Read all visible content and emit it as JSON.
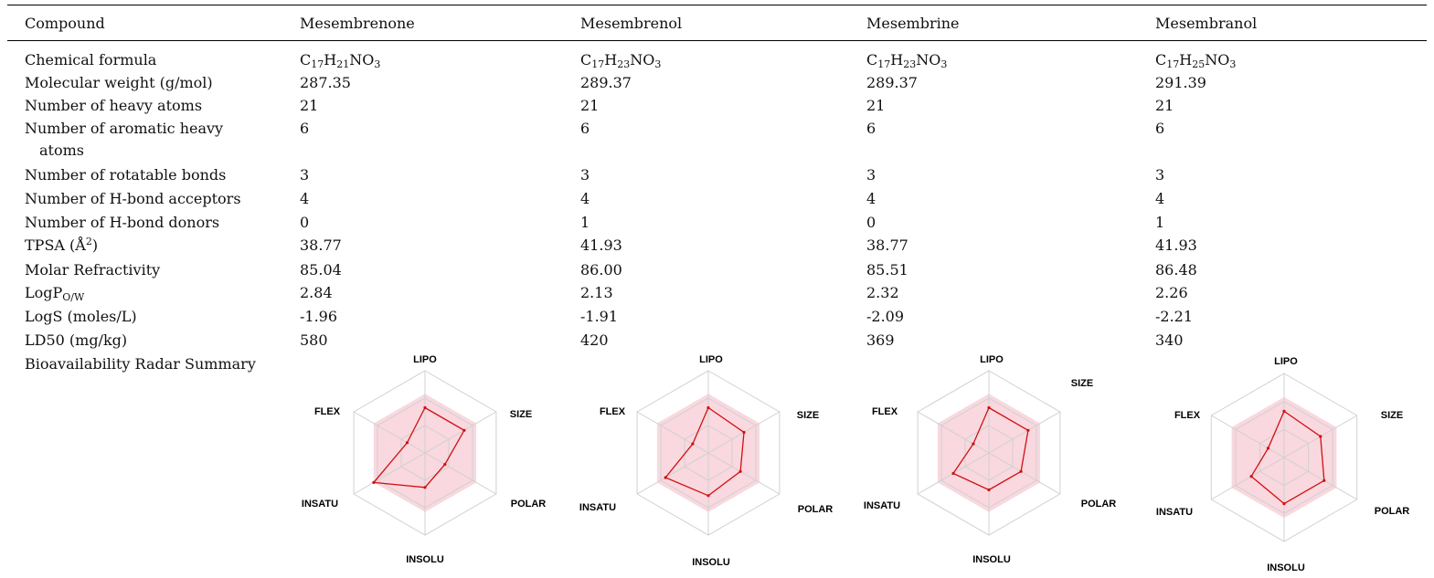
{
  "table": {
    "header": {
      "compound_label": "Compound",
      "compounds": [
        "Mesembrenone",
        "Mesembrenol",
        "Mesembrine",
        "Mesembranol"
      ]
    },
    "rows": [
      {
        "label": "Chemical formula"
      },
      {
        "label": "Molecular weight (g/mol)",
        "values": [
          "287.35",
          "289.37",
          "289.37",
          "291.39"
        ]
      },
      {
        "label": "Number of heavy atoms",
        "values": [
          "21",
          "21",
          "21",
          "21"
        ]
      },
      {
        "label": "Number of aromatic heavy atoms",
        "values": [
          "6",
          "6",
          "6",
          "6"
        ]
      },
      {
        "label": "Number of rotatable bonds",
        "values": [
          "3",
          "3",
          "3",
          "3"
        ]
      },
      {
        "label": "Number of H-bond acceptors",
        "values": [
          "4",
          "4",
          "4",
          "4"
        ]
      },
      {
        "label": "Number of H-bond donors",
        "values": [
          "0",
          "1",
          "0",
          "1"
        ]
      },
      {
        "label": "TPSA (Å",
        "label_sup": "2",
        "label_after": ")",
        "values": [
          "38.77",
          "41.93",
          "38.77",
          "41.93"
        ]
      },
      {
        "label": "Molar Refractivity",
        "values": [
          "85.04",
          "86.00",
          "85.51",
          "86.48"
        ]
      },
      {
        "label": "LogP",
        "label_sub": "O/W",
        "values": [
          "2.84",
          "2.13",
          "2.32",
          "2.26"
        ]
      },
      {
        "label": "LogS (moles/L)",
        "values": [
          "-1.96",
          "-1.91",
          "-2.09",
          "-2.21"
        ]
      },
      {
        "label": "LD50 (mg/kg)",
        "values": [
          "580",
          "420",
          "369",
          "340"
        ]
      },
      {
        "label": "Bioavailability Radar Summary"
      }
    ],
    "formulas": [
      {
        "c": "C",
        "c_n": "17",
        "h": "H",
        "h_n": "21",
        "rest": "NO",
        "o_n": "3"
      },
      {
        "c": "C",
        "c_n": "17",
        "h": "H",
        "h_n": "23",
        "rest": "NO",
        "o_n": "3"
      },
      {
        "c": "C",
        "c_n": "17",
        "h": "H",
        "h_n": "23",
        "rest": "NO",
        "o_n": "3"
      },
      {
        "c": "C",
        "c_n": "17",
        "h": "H",
        "h_n": "25",
        "rest": "NO",
        "o_n": "3"
      }
    ]
  },
  "radar": {
    "axes": [
      "LIPO",
      "SIZE",
      "POLAR",
      "INSOLU",
      "INSATU",
      "FLEX"
    ],
    "colors": {
      "zone": "#f9d8df",
      "line": "#d01010",
      "grid": "#d0d0d0"
    },
    "charts": [
      {
        "compound": "Mesembrenone",
        "levels": [
          0.55,
          0.55,
          0.28,
          0.42,
          0.72,
          0.25
        ]
      },
      {
        "compound": "Mesembrenol",
        "levels": [
          0.55,
          0.5,
          0.45,
          0.52,
          0.6,
          0.22
        ]
      },
      {
        "compound": "Mesembrine",
        "levels": [
          0.55,
          0.55,
          0.45,
          0.45,
          0.5,
          0.22
        ]
      },
      {
        "compound": "Mesembranol",
        "levels": [
          0.55,
          0.5,
          0.55,
          0.55,
          0.45,
          0.22
        ]
      }
    ]
  }
}
